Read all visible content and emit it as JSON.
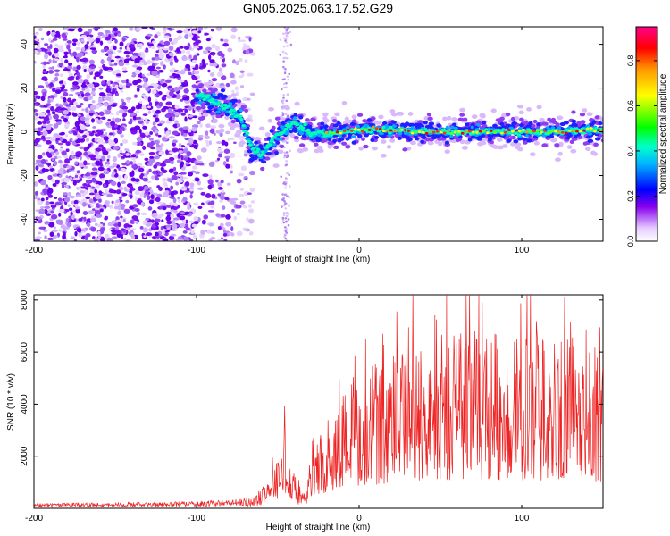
{
  "title": "GN05.2025.063.17.52.G29",
  "chart_data": [
    {
      "type": "heatmap",
      "xlabel": "Height of straight line (km)",
      "ylabel": "Frequency (Hz)",
      "xlim": [
        -200,
        150
      ],
      "ylim": [
        -50,
        48
      ],
      "x_ticks": [
        -200,
        -100,
        0,
        100
      ],
      "y_ticks": [
        -40,
        -20,
        0,
        20,
        40
      ],
      "colorbar": {
        "label": "Normalized spectral amplitude",
        "range": [
          0,
          0.95
        ],
        "ticks": [
          0.0,
          0.2,
          0.4,
          0.6,
          0.8
        ]
      },
      "ridge": {
        "x": [
          -100,
          -90,
          -80,
          -72,
          -66,
          -60,
          -55,
          -50,
          -45,
          -40,
          -30,
          -20,
          -10,
          0,
          20,
          40,
          60,
          80,
          100,
          120,
          150
        ],
        "y": [
          17,
          14,
          11,
          6,
          -8,
          -10,
          -5,
          -2,
          2,
          4,
          0,
          -1,
          0,
          1,
          1,
          0,
          0,
          0,
          0,
          0,
          1
        ]
      }
    },
    {
      "type": "line",
      "xlabel": "Height of straight line (km)",
      "ylabel": "SNR (10 * v/v)",
      "xlim": [
        -200,
        150
      ],
      "ylim": [
        0,
        8200
      ],
      "x_ticks": [
        -200,
        -100,
        0,
        100
      ],
      "y_ticks": [
        2000,
        4000,
        6000,
        8000
      ],
      "series": [
        {
          "color": "#ee2222",
          "envelope": {
            "x": [
              -200,
              -120,
              -80,
              -65,
              -55,
              -50,
              -45,
              -40,
              -35,
              -30,
              -25,
              -20,
              -10,
              0,
              10,
              20,
              30,
              40,
              50,
              60,
              70,
              80,
              90,
              100,
              110,
              120,
              130,
              140,
              150
            ],
            "y": [
              120,
              150,
              200,
              300,
              700,
              1400,
              2200,
              900,
              300,
              1200,
              1900,
              2500,
              3000,
              3400,
              3600,
              3900,
              4100,
              4200,
              4300,
              4300,
              4400,
              4400,
              4400,
              4300,
              4300,
              4200,
              4200,
              4100,
              4100
            ]
          }
        }
      ]
    }
  ]
}
